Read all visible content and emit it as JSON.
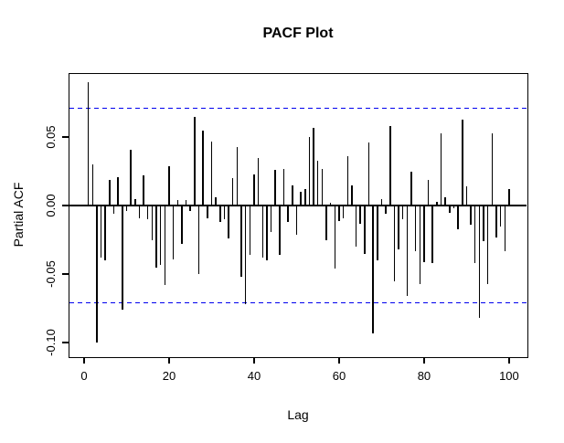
{
  "chart_data": {
    "type": "stem",
    "title": "PACF Plot",
    "xlabel": "Lag",
    "ylabel": "Partial ACF",
    "lag_start": 1,
    "values": [
      0.09,
      0.03,
      -0.1,
      -0.038,
      -0.04,
      0.019,
      -0.006,
      0.021,
      -0.076,
      -0.004,
      0.041,
      0.005,
      -0.009,
      0.022,
      -0.01,
      -0.025,
      -0.045,
      -0.043,
      -0.058,
      0.029,
      -0.039,
      0.004,
      -0.028,
      0.004,
      -0.004,
      0.065,
      -0.05,
      0.055,
      -0.009,
      0.047,
      0.006,
      -0.012,
      -0.01,
      -0.024,
      0.02,
      0.043,
      -0.052,
      -0.072,
      -0.036,
      0.023,
      0.035,
      -0.038,
      -0.04,
      -0.019,
      0.026,
      -0.036,
      0.027,
      -0.012,
      0.015,
      -0.021,
      0.01,
      0.012,
      0.05,
      0.057,
      0.033,
      0.027,
      -0.025,
      0.002,
      -0.046,
      -0.011,
      -0.009,
      0.036,
      0.015,
      -0.03,
      -0.013,
      -0.035,
      0.046,
      -0.093,
      -0.04,
      0.005,
      -0.006,
      0.058,
      -0.055,
      -0.032,
      -0.01,
      -0.066,
      0.025,
      -0.033,
      -0.057,
      -0.041,
      0.019,
      -0.042,
      0.003,
      0.053,
      0.006,
      -0.005,
      -0.002,
      -0.017,
      0.063,
      0.014,
      -0.014,
      -0.042,
      -0.082,
      -0.026,
      -0.057,
      0.053,
      -0.023,
      -0.015,
      -0.033,
      0.012
    ],
    "conf_upper": 0.071,
    "conf_lower": -0.071,
    "xticks": [
      {
        "value": 0,
        "label": "0"
      },
      {
        "value": 20,
        "label": "20"
      },
      {
        "value": 40,
        "label": "40"
      },
      {
        "value": 60,
        "label": "60"
      },
      {
        "value": 80,
        "label": "80"
      },
      {
        "value": 100,
        "label": "100"
      }
    ],
    "yticks": [
      {
        "value": 0.05,
        "label": "0.05"
      },
      {
        "value": 0.0,
        "label": "0.00"
      },
      {
        "value": -0.05,
        "label": "-0.05"
      },
      {
        "value": -0.1,
        "label": "-0.10"
      }
    ],
    "xlim": [
      -3.44,
      104.1
    ],
    "ylim": [
      -0.11,
      0.096
    ],
    "grid": false,
    "legend": null,
    "colors": {
      "stem": "#000000",
      "axis": "#000000",
      "conf": "#0000EE",
      "background": "#FFFFFF"
    }
  }
}
